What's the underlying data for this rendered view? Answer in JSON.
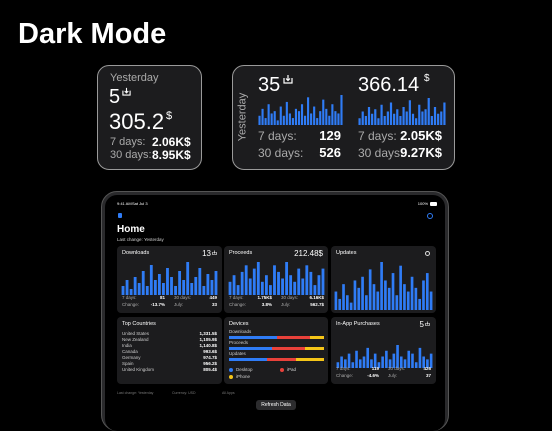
{
  "header": {
    "title": "Dark Mode"
  },
  "small_widget": {
    "period": "Yesterday",
    "downloads": "5",
    "proceeds": "305.2",
    "currency": "$",
    "rows": [
      {
        "label": "7 days:",
        "value": "2.06K$"
      },
      {
        "label": "30 days:",
        "value": "8.95K$"
      }
    ]
  },
  "medium_widget": {
    "period": "Yesterday",
    "downloads": "35",
    "proceeds": "366.14",
    "currency": "$",
    "download_bars": [
      4,
      7,
      3,
      9,
      5,
      6,
      2,
      8,
      4,
      10,
      5,
      3,
      7,
      6,
      9,
      4,
      12,
      5,
      8,
      3,
      6,
      11,
      7,
      4,
      9,
      6,
      5,
      13
    ],
    "proceeds_bars": [
      3,
      6,
      4,
      8,
      5,
      7,
      3,
      9,
      4,
      6,
      10,
      5,
      7,
      4,
      8,
      6,
      11,
      5,
      3,
      9,
      6,
      7,
      12,
      4,
      8,
      5,
      6,
      10
    ],
    "download_rows": [
      {
        "label": "7 days:",
        "value": "129"
      },
      {
        "label": "30 days:",
        "value": "526"
      }
    ],
    "proceeds_rows": [
      {
        "label": "7 days:",
        "value": "2.05K$"
      },
      {
        "label": "30 days:",
        "value": "9.27K$"
      }
    ]
  },
  "ipad": {
    "status": {
      "time": "9:41 AM",
      "date": "Sat Jul 3",
      "battery": "100%"
    },
    "title": "Home",
    "last_change": "Last change: Yesterday",
    "cards": {
      "downloads": {
        "title": "Downloads",
        "value": "13",
        "bars": [
          3,
          5,
          2,
          6,
          4,
          8,
          3,
          10,
          5,
          7,
          4,
          9,
          6,
          3,
          8,
          5,
          11,
          4,
          6,
          9,
          3,
          7,
          5,
          8
        ],
        "stats": [
          [
            "7 days:",
            "81",
            "30 days:",
            "449"
          ],
          [
            "Change:",
            "-13.7%",
            "July:",
            "33"
          ]
        ]
      },
      "proceeds": {
        "title": "Proceeds",
        "value": "212.48$",
        "bars": [
          4,
          6,
          3,
          7,
          9,
          5,
          8,
          10,
          4,
          6,
          3,
          9,
          7,
          5,
          10,
          6,
          4,
          8,
          5,
          9,
          7,
          3,
          6,
          8
        ],
        "stats": [
          [
            "7 days:",
            "1.75K$",
            "30 days:",
            "6.16K$"
          ],
          [
            "Change:",
            "3.8%",
            "July:",
            "562.7$"
          ]
        ]
      },
      "updates": {
        "title": "Updates",
        "bars": [
          5,
          3,
          7,
          4,
          2,
          8,
          6,
          9,
          4,
          11,
          7,
          5,
          13,
          8,
          6,
          10,
          4,
          12,
          7,
          5,
          9,
          6,
          3,
          8,
          10,
          5
        ]
      },
      "countries": {
        "title": "Top Countries",
        "rows": [
          [
            "United States",
            "1,331.5$"
          ],
          [
            "New Zealand",
            "1,105.9$"
          ],
          [
            "India",
            "1,140.8$"
          ],
          [
            "Canada",
            "993.6$"
          ],
          [
            "Germany",
            "974.7$"
          ],
          [
            "Spain",
            "956.2$"
          ],
          [
            "United Kingdom",
            "805.4$"
          ]
        ]
      },
      "devices": {
        "title": "Devices",
        "rows": [
          "Downloads",
          "Proceeds",
          "Updates"
        ],
        "shares": [
          [
            50,
            35,
            15
          ],
          [
            45,
            35,
            20
          ],
          [
            40,
            30,
            30
          ]
        ],
        "legend": [
          {
            "label": "Desktop",
            "color": "#2f7cf6"
          },
          {
            "label": "iPad",
            "color": "#e8413a"
          },
          {
            "label": "iPhone",
            "color": "#f5c518"
          }
        ]
      },
      "iap": {
        "title": "In-App Purchases",
        "value": "5",
        "bars": [
          2,
          4,
          3,
          5,
          2,
          6,
          3,
          4,
          7,
          3,
          5,
          2,
          4,
          6,
          3,
          5,
          8,
          4,
          3,
          6,
          5,
          2,
          7,
          4,
          3,
          5
        ],
        "stats": [
          [
            "7 days:",
            "119",
            "30 days:",
            "426"
          ],
          [
            "Change:",
            "-4.6%",
            "July:",
            "37"
          ]
        ]
      }
    },
    "footer": [
      "Last change: Yesterday",
      "Currency: USD",
      "All Apps"
    ],
    "button": "Refresh Data"
  }
}
